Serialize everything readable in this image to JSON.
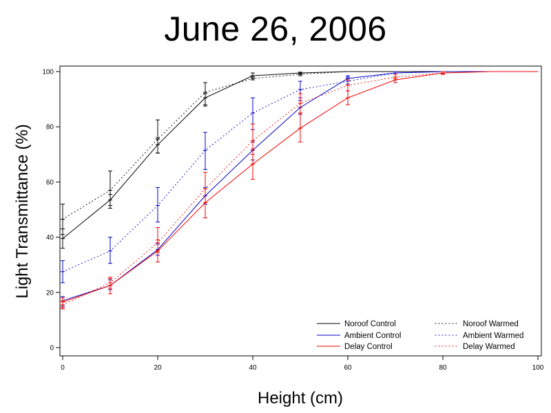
{
  "chart_data": {
    "type": "line",
    "title": "June 26, 2006",
    "xlabel": "Height (cm)",
    "ylabel": "Light Transmittance (%)",
    "xlim": [
      0,
      100
    ],
    "ylim": [
      0,
      100
    ],
    "xticks": [
      0,
      20,
      40,
      60,
      80,
      100
    ],
    "yticks": [
      0,
      20,
      40,
      60,
      80,
      100
    ],
    "grid": false,
    "legend_position": "bottom-right",
    "series": [
      {
        "name": "Noroof Control",
        "color": "#000000",
        "style": "solid",
        "x": [
          0,
          10,
          20,
          30,
          40,
          50,
          60,
          70,
          80,
          90,
          100
        ],
        "y": [
          39.5,
          53.5,
          73.5,
          90.5,
          98.5,
          99.5,
          100,
          100,
          100,
          100,
          100
        ],
        "err_low": [
          36,
          51.5,
          70.5,
          88,
          97.5,
          99.2,
          99.8,
          100,
          100,
          100,
          100
        ],
        "err_high": [
          43,
          55.5,
          76,
          92,
          99.5,
          99.8,
          100,
          100,
          100,
          100,
          100
        ]
      },
      {
        "name": "Noroof Warmed",
        "color": "#000000",
        "style": "dotted",
        "x": [
          0,
          10,
          20,
          30,
          40,
          50,
          60,
          70,
          80,
          90,
          100
        ],
        "y": [
          46.5,
          57,
          75.5,
          92.5,
          97.5,
          99,
          100,
          100,
          100,
          100,
          100
        ],
        "err_low": [
          41,
          50.5,
          70.5,
          87.5,
          97,
          98.5,
          99.8,
          100,
          100,
          100,
          100
        ],
        "err_high": [
          52,
          64,
          82.5,
          96,
          98,
          99.5,
          100,
          100,
          100,
          100,
          100
        ]
      },
      {
        "name": "Ambient Control",
        "color": "#0000cc",
        "style": "solid",
        "x": [
          0,
          10,
          20,
          30,
          40,
          50,
          60,
          70,
          80,
          90,
          100
        ],
        "y": [
          17,
          22.5,
          35.5,
          55,
          71.5,
          87,
          97.5,
          99.5,
          100,
          100,
          100
        ],
        "err_low": [
          15,
          21,
          33.5,
          52,
          68,
          84.5,
          96.5,
          99,
          99.8,
          100,
          100
        ],
        "err_high": [
          18.5,
          24.5,
          37.5,
          58,
          74.5,
          89.5,
          98.5,
          100,
          100,
          100,
          100
        ]
      },
      {
        "name": "Ambient Warmed",
        "color": "#0000cc",
        "style": "dotted",
        "x": [
          0,
          10,
          20,
          30,
          40,
          50,
          60,
          70,
          80,
          90,
          100
        ],
        "y": [
          27.5,
          35,
          51.5,
          71.5,
          85,
          93.5,
          96.5,
          99.5,
          100,
          100,
          100
        ],
        "err_low": [
          23.5,
          30.5,
          45.5,
          64.5,
          79,
          90.5,
          95.5,
          99,
          99.8,
          100,
          100
        ],
        "err_high": [
          31.5,
          40,
          58,
          78,
          90.5,
          96.5,
          98,
          100,
          100,
          100,
          100
        ]
      },
      {
        "name": "Delay Control",
        "color": "#ee0000",
        "style": "solid",
        "x": [
          0,
          10,
          20,
          30,
          40,
          50,
          60,
          70,
          80,
          90,
          100
        ],
        "y": [
          16.5,
          22.5,
          35,
          52.5,
          66.5,
          79.5,
          90.5,
          97,
          99.5,
          100,
          100
        ],
        "err_low": [
          14.5,
          19.5,
          31,
          47,
          61,
          74.5,
          88,
          96,
          99,
          100,
          100
        ],
        "err_high": [
          18,
          25.5,
          39,
          57.5,
          72,
          85,
          93,
          98,
          100,
          100,
          100
        ]
      },
      {
        "name": "Delay Warmed",
        "color": "#ee0000",
        "style": "dotted",
        "x": [
          0,
          10,
          20,
          30,
          40,
          50,
          60,
          70,
          80,
          90,
          100
        ],
        "y": [
          15.5,
          23.5,
          38,
          57.5,
          75,
          88.5,
          95,
          98,
          99.5,
          100,
          100
        ],
        "err_low": [
          14,
          21.5,
          34.5,
          52.5,
          70,
          85,
          93,
          97.5,
          99.2,
          100,
          100
        ],
        "err_high": [
          17,
          25,
          43.5,
          63.5,
          81,
          92,
          97,
          99,
          100,
          100,
          100
        ]
      }
    ]
  }
}
